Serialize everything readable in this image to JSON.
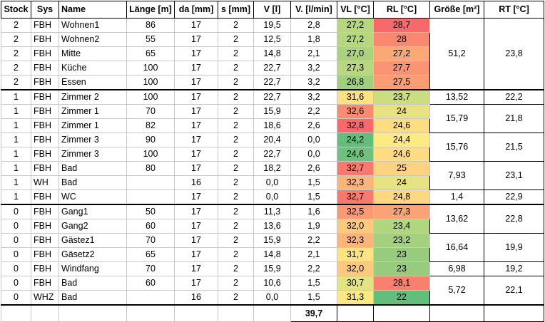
{
  "headers": [
    "Stock",
    "Sys",
    "Name",
    "Länge [m]",
    "da [mm]",
    "s [mm]",
    "V [l]",
    "V. [l/min]",
    "VL [°C]",
    "RL [°C]",
    "Größe [m²]",
    "RT [°C]"
  ],
  "rows": [
    {
      "stock": "2",
      "sys": "FBH",
      "name": "Wohnen1",
      "laenge": "86",
      "da": "17",
      "s": "2",
      "v": "19,5",
      "vmin": "2,8",
      "vl": "27,2",
      "vl_color": "#b6d680",
      "rl": "28,7",
      "rl_color": "#f8696b"
    },
    {
      "stock": "2",
      "sys": "FBH",
      "name": "Wohnen2",
      "laenge": "55",
      "da": "17",
      "s": "2",
      "v": "12,5",
      "vmin": "1,8",
      "vl": "27,2",
      "vl_color": "#b6d680",
      "rl": "28",
      "rl_color": "#f98870"
    },
    {
      "stock": "2",
      "sys": "FBH",
      "name": "Mitte",
      "laenge": "65",
      "da": "17",
      "s": "2",
      "v": "14,8",
      "vmin": "2,1",
      "vl": "27,0",
      "vl_color": "#abd27f",
      "rl": "27,2",
      "rl_color": "#fba876"
    },
    {
      "stock": "2",
      "sys": "FBH",
      "name": "Küche",
      "laenge": "100",
      "da": "17",
      "s": "2",
      "v": "22,7",
      "vmin": "3,2",
      "vl": "27,3",
      "vl_color": "#b9d780",
      "rl": "27,7",
      "rl_color": "#fa9473"
    },
    {
      "stock": "2",
      "sys": "FBH",
      "name": "Essen",
      "laenge": "100",
      "da": "17",
      "s": "2",
      "v": "22,7",
      "vmin": "3,2",
      "vl": "26,8",
      "vl_color": "#a2cf7e",
      "rl": "27,5",
      "rl_color": "#fa9c74"
    },
    {
      "stock": "1",
      "sys": "FBH",
      "name": "Zimmer 2",
      "laenge": "100",
      "da": "17",
      "s": "2",
      "v": "22,7",
      "vmin": "3,2",
      "vl": "31,6",
      "vl_color": "#fee182",
      "rl": "23,7",
      "rl_color": "#cbdc81"
    },
    {
      "stock": "1",
      "sys": "FBH",
      "name": "Zimmer 1",
      "laenge": "70",
      "da": "17",
      "s": "2",
      "v": "15,9",
      "vmin": "2,2",
      "vl": "32,6",
      "vl_color": "#f98b71",
      "rl": "24",
      "rl_color": "#e8e382"
    },
    {
      "stock": "1",
      "sys": "FBH",
      "name": "Zimmer 1",
      "laenge": "82",
      "da": "17",
      "s": "2",
      "v": "18,6",
      "vmin": "2,6",
      "vl": "32,8",
      "vl_color": "#f8696b",
      "rl": "24,6",
      "rl_color": "#ffdc81"
    },
    {
      "stock": "1",
      "sys": "FBH",
      "name": "Zimmer 3",
      "laenge": "90",
      "da": "17",
      "s": "2",
      "v": "20,4",
      "vmin": "0,0",
      "vl": "24,2",
      "vl_color": "#63be7b",
      "rl": "24,4",
      "rl_color": "#feea83"
    },
    {
      "stock": "1",
      "sys": "FBH",
      "name": "Zimmer 3",
      "laenge": "100",
      "da": "17",
      "s": "2",
      "v": "22,7",
      "vmin": "0,0",
      "vl": "24,6",
      "vl_color": "#6ec17c",
      "rl": "24,6",
      "rl_color": "#ffdc81"
    },
    {
      "stock": "1",
      "sys": "FBH",
      "name": "Bad",
      "laenge": "80",
      "da": "17",
      "s": "2",
      "v": "18,2",
      "vmin": "2,6",
      "vl": "32,7",
      "vl_color": "#f87a6e",
      "rl": "25",
      "rl_color": "#fed280"
    },
    {
      "stock": "1",
      "sys": "WH",
      "name": "Bad",
      "laenge": "",
      "da": "16",
      "s": "2",
      "v": "0,0",
      "vmin": "1,5",
      "vl": "32,3",
      "vl_color": "#fcb479",
      "rl": "24",
      "rl_color": "#e8e382"
    },
    {
      "stock": "1",
      "sys": "FBH",
      "name": "WC",
      "laenge": "",
      "da": "17",
      "s": "2",
      "v": "0,0",
      "vmin": "1,5",
      "vl": "32,7",
      "vl_color": "#f87a6e",
      "rl": "24,8",
      "rl_color": "#fed781"
    },
    {
      "stock": "0",
      "sys": "FBH",
      "name": "Gang1",
      "laenge": "50",
      "da": "17",
      "s": "2",
      "v": "11,3",
      "vmin": "1,6",
      "vl": "32,5",
      "vl_color": "#fa9a74",
      "rl": "27,3",
      "rl_color": "#fba376"
    },
    {
      "stock": "0",
      "sys": "FBH",
      "name": "Gang2",
      "laenge": "60",
      "da": "17",
      "s": "2",
      "v": "13,6",
      "vmin": "1,9",
      "vl": "32,0",
      "vl_color": "#fdc97e",
      "rl": "23,4",
      "rl_color": "#b2d580"
    },
    {
      "stock": "0",
      "sys": "FBH",
      "name": "Gästez1",
      "laenge": "70",
      "da": "17",
      "s": "2",
      "v": "15,9",
      "vmin": "2,2",
      "vl": "32,3",
      "vl_color": "#fcb479",
      "rl": "23,2",
      "rl_color": "#a4d07f"
    },
    {
      "stock": "0",
      "sys": "FBH",
      "name": "Gäsetz2",
      "laenge": "65",
      "da": "17",
      "s": "2",
      "v": "14,8",
      "vmin": "2,1",
      "vl": "31,7",
      "vl_color": "#fee383",
      "rl": "23",
      "rl_color": "#97cc7e"
    },
    {
      "stock": "0",
      "sys": "FBH",
      "name": "Windfang",
      "laenge": "70",
      "da": "17",
      "s": "2",
      "v": "15,9",
      "vmin": "2,2",
      "vl": "32,0",
      "vl_color": "#fdc97e",
      "rl": "23",
      "rl_color": "#97cc7e"
    },
    {
      "stock": "0",
      "sys": "FBH",
      "name": "Bad",
      "laenge": "60",
      "da": "17",
      "s": "2",
      "v": "10,6",
      "vmin": "1,5",
      "vl": "30,7",
      "vl_color": "#e2e383",
      "rl": "28,1",
      "rl_color": "#f9806f"
    },
    {
      "stock": "0",
      "sys": "WHZ",
      "name": "Bad",
      "laenge": "",
      "da": "16",
      "s": "2",
      "v": "0,0",
      "vmin": "1,5",
      "vl": "31,3",
      "vl_color": "#fde983",
      "rl": "22",
      "rl_color": "#63be7b"
    }
  ],
  "rooms": [
    {
      "groesse": "51,2",
      "rt": "23,8",
      "start": 0,
      "span": 5
    },
    {
      "groesse": "13,52",
      "rt": "22,2",
      "start": 5,
      "span": 1
    },
    {
      "groesse": "15,79",
      "rt": "21,8",
      "start": 6,
      "span": 2
    },
    {
      "groesse": "15,76",
      "rt": "21,5",
      "start": 8,
      "span": 2
    },
    {
      "groesse": "7,93",
      "rt": "23,1",
      "start": 10,
      "span": 2
    },
    {
      "groesse": "1,4",
      "rt": "22,9",
      "start": 12,
      "span": 1
    },
    {
      "groesse": "13,62",
      "rt": "22,8",
      "start": 13,
      "span": 2
    },
    {
      "groesse": "16,64",
      "rt": "19,9",
      "start": 15,
      "span": 2
    },
    {
      "groesse": "6,98",
      "rt": "19,2",
      "start": 17,
      "span": 1
    },
    {
      "groesse": "5,72",
      "rt": "22,1",
      "start": 18,
      "span": 2
    }
  ],
  "total_vmin": "39,7"
}
